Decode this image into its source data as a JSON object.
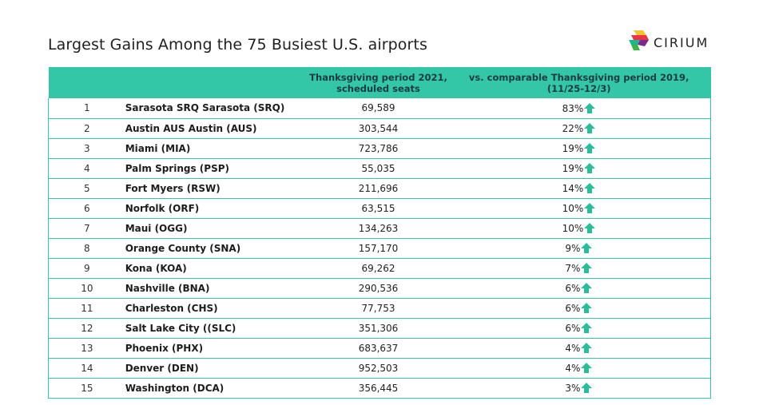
{
  "title": "Largest Gains Among the 75 Busiest U.S. airports",
  "logo": {
    "text": "CIRIUM"
  },
  "table": {
    "headers": {
      "rank": "",
      "airport": "",
      "seats_line1": "Thanksgiving period 2021,",
      "seats_line2": "scheduled seats",
      "change_line1": "vs. comparable Thanksgiving period 2019,",
      "change_line2": "(11/25-12/3)"
    },
    "rows": [
      {
        "rank": "1",
        "airport": "Sarasota SRQ Sarasota (SRQ)",
        "seats": "69,589",
        "change": "83%"
      },
      {
        "rank": "2",
        "airport": "Austin AUS Austin (AUS)",
        "seats": "303,544",
        "change": "22%"
      },
      {
        "rank": "3",
        "airport": "Miami (MIA)",
        "seats": "723,786",
        "change": "19%"
      },
      {
        "rank": "4",
        "airport": "Palm Springs (PSP)",
        "seats": "55,035",
        "change": "19%"
      },
      {
        "rank": "5",
        "airport": "Fort Myers (RSW)",
        "seats": "211,696",
        "change": "14%"
      },
      {
        "rank": "6",
        "airport": "Norfolk (ORF)",
        "seats": "63,515",
        "change": "10%"
      },
      {
        "rank": "7",
        "airport": "Maui (OGG)",
        "seats": "134,263",
        "change": "10%"
      },
      {
        "rank": "8",
        "airport": "Orange County (SNA)",
        "seats": "157,170",
        "change": "9%"
      },
      {
        "rank": "9",
        "airport": "Kona (KOA)",
        "seats": "69,262",
        "change": "7%"
      },
      {
        "rank": "10",
        "airport": "Nashville (BNA)",
        "seats": "290,536",
        "change": "6%"
      },
      {
        "rank": "11",
        "airport": "Charleston (CHS)",
        "seats": "77,753",
        "change": "6%"
      },
      {
        "rank": "12",
        "airport": "Salt Lake City ((SLC)",
        "seats": "351,306",
        "change": "6%"
      },
      {
        "rank": "13",
        "airport": "Phoenix (PHX)",
        "seats": "683,637",
        "change": "4%"
      },
      {
        "rank": "14",
        "airport": "Denver (DEN)",
        "seats": "952,503",
        "change": "4%"
      },
      {
        "rank": "15",
        "airport": "Washington (DCA)",
        "seats": "356,445",
        "change": "3%"
      }
    ]
  },
  "icons": {
    "trend": "arrow-up-icon"
  },
  "colors": {
    "accent": "#33c7a7",
    "arrow": "#2bbd9a",
    "header_text": "#1d3b40"
  }
}
